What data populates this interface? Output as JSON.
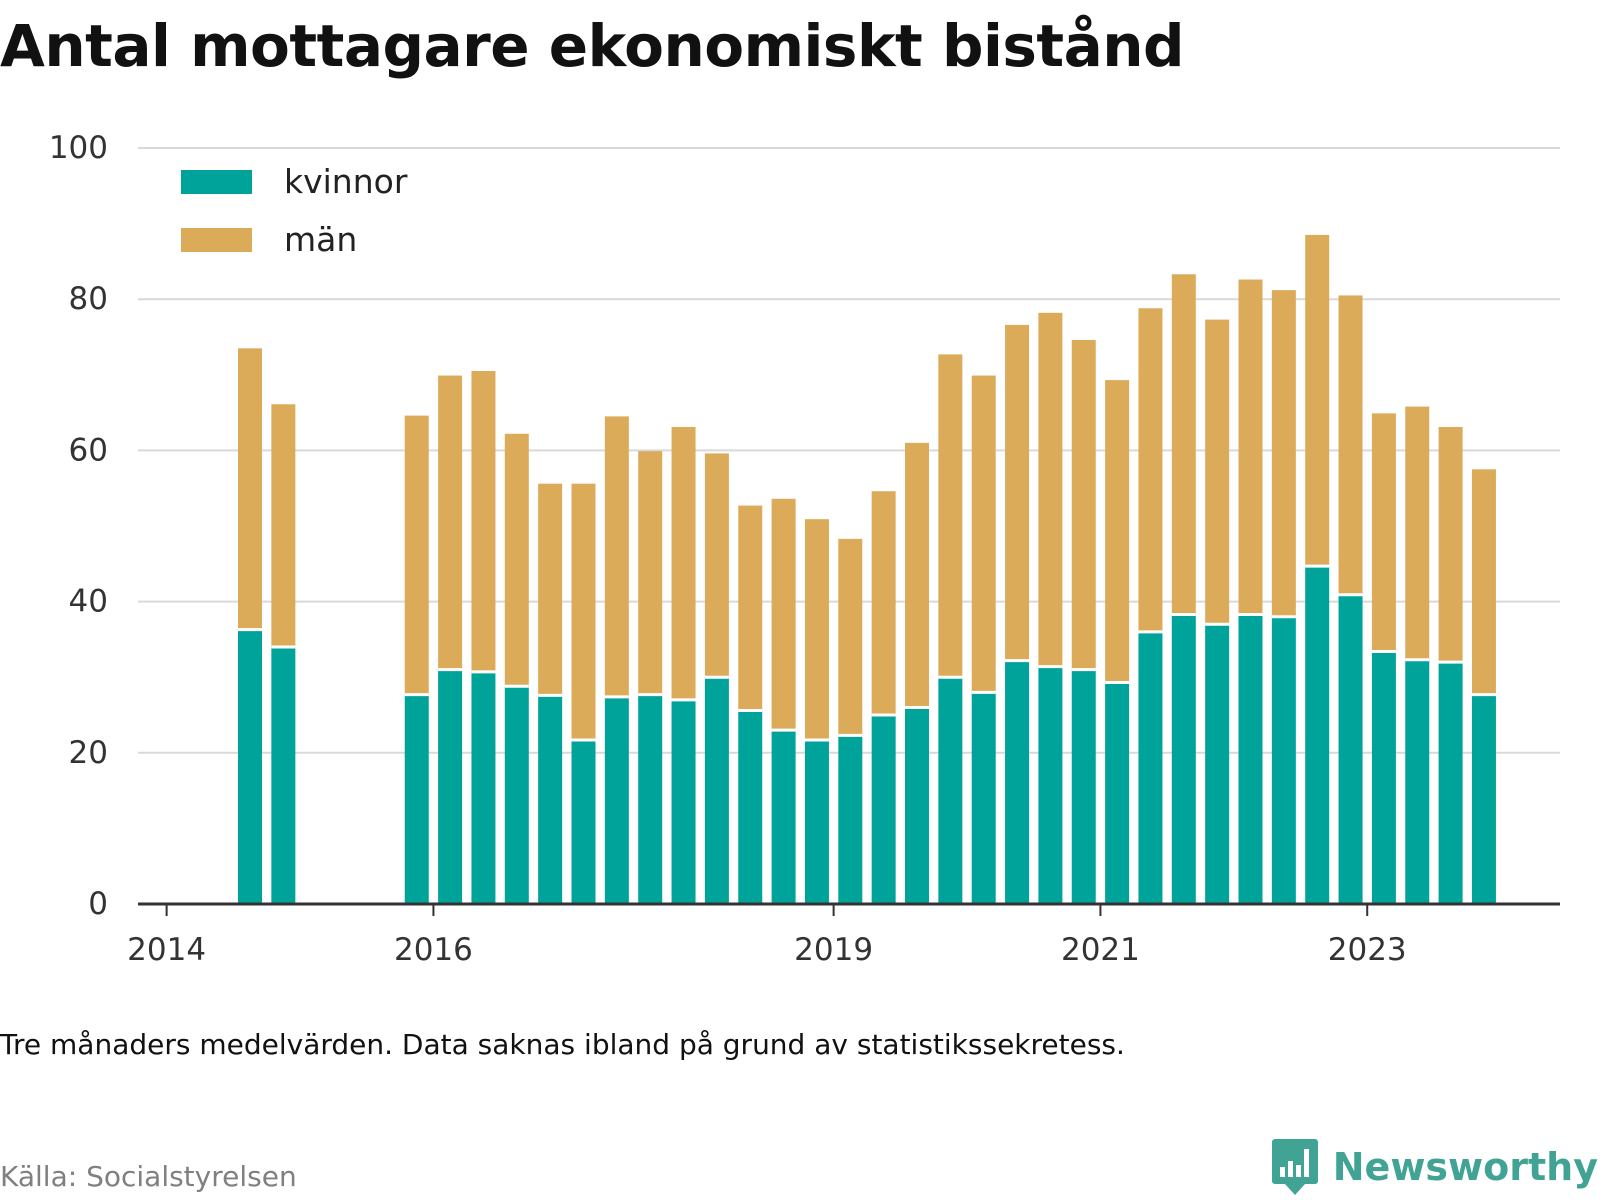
{
  "title": "Antal mottagare ekonomiskt bistånd",
  "note": "Tre månaders medelvärden. Data saknas ibland på grund av statistikssekretess.",
  "source": "Källa: Socialstyrelsen",
  "brand": {
    "name": "Newsworthy",
    "icon": "newsworthy-logo-icon",
    "color": "#40A393"
  },
  "colors": {
    "kvinnor": "#00A39A",
    "man": "#DBAB5A",
    "grid": "#d9d9d9",
    "axis": "#333333"
  },
  "chart_data": {
    "type": "bar",
    "stacked": true,
    "ylim": [
      0,
      100
    ],
    "yticks": [
      0,
      20,
      40,
      60,
      80,
      100
    ],
    "xticks": [
      "2014",
      "2016",
      "2019",
      "2021",
      "2023"
    ],
    "legend": "top-left",
    "grid": true,
    "x": [
      "2014-Q1",
      "2014-Q2",
      "2014-Q3",
      "2014-Q4",
      "2015-Q1",
      "2015-Q2",
      "2015-Q3",
      "2015-Q4",
      "2016-Q1",
      "2016-Q2",
      "2016-Q3",
      "2016-Q4",
      "2017-Q1",
      "2017-Q2",
      "2017-Q3",
      "2017-Q4",
      "2018-Q1",
      "2018-Q2",
      "2018-Q3",
      "2018-Q4",
      "2019-Q1",
      "2019-Q2",
      "2019-Q3",
      "2019-Q4",
      "2020-Q1",
      "2020-Q2",
      "2020-Q3",
      "2020-Q4",
      "2021-Q1",
      "2021-Q2",
      "2021-Q3",
      "2021-Q4",
      "2022-Q1",
      "2022-Q2",
      "2022-Q3",
      "2022-Q4",
      "2023-Q1",
      "2023-Q2",
      "2023-Q3",
      "2023-Q4"
    ],
    "series": [
      {
        "name": "kvinnor",
        "values": [
          null,
          null,
          36.3,
          34,
          null,
          null,
          null,
          27.7,
          31,
          30.7,
          28.8,
          27.6,
          21.7,
          27.4,
          27.7,
          27,
          30,
          25.6,
          23,
          21.7,
          22.3,
          25,
          26,
          30,
          28,
          32.2,
          31.4,
          31,
          29.3,
          36,
          38.3,
          37,
          38.3,
          38,
          44.7,
          40.9,
          33.4,
          32.3,
          32,
          27.7
        ]
      },
      {
        "name": "män",
        "values": [
          null,
          null,
          37.2,
          32.1,
          null,
          null,
          null,
          36.9,
          38.9,
          39.8,
          33.4,
          28,
          33.9,
          37.1,
          32.2,
          36.1,
          29.6,
          27.1,
          30.6,
          29.2,
          26,
          29.6,
          35,
          42.7,
          41.9,
          44.4,
          46.8,
          43.6,
          40,
          42.8,
          45,
          40.3,
          44.3,
          43.2,
          43.8,
          39.6,
          31.5,
          33.5,
          31.1,
          29.8
        ]
      }
    ]
  }
}
